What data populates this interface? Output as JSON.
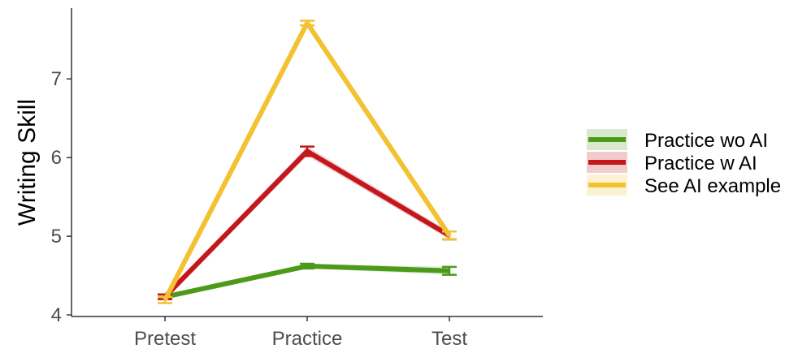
{
  "chart_data": {
    "type": "line",
    "title": "",
    "xlabel": "",
    "ylabel": "Writing Skill",
    "categories": [
      "Pretest",
      "Practice",
      "Test"
    ],
    "ylim": [
      3.98,
      7.9
    ],
    "yticks": [
      4,
      5,
      6,
      7
    ],
    "grid": false,
    "legend_position": "right",
    "series": [
      {
        "name": "Practice wo AI",
        "color": "#4d9a1a",
        "values": [
          4.23,
          4.62,
          4.56
        ],
        "errors": [
          0.03,
          0.03,
          0.05
        ]
      },
      {
        "name": "Practice w AI",
        "color": "#c3171c",
        "values": [
          4.23,
          6.08,
          5.01
        ],
        "errors": [
          0.03,
          0.06,
          0.05
        ]
      },
      {
        "name": "See AI example",
        "color": "#f3c232",
        "values": [
          4.19,
          7.71,
          5.01
        ],
        "errors": [
          0.04,
          0.03,
          0.05
        ]
      }
    ]
  }
}
